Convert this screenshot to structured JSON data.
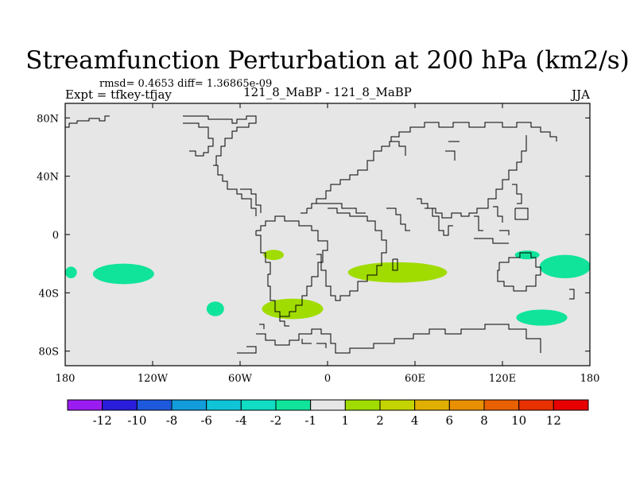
{
  "title": "Streamfunction Perturbation at 200 hPa (km2/s)",
  "stats": "rmsd= 0.4653 diff= 1.36865e-09",
  "experiment": "Expt = tfkey-tfjay",
  "center_label": "121_8_MaBP - 121_8_MaBP",
  "season": "JJA",
  "chart_data": {
    "type": "heatmap",
    "projection": "cylindrical-equidistant",
    "xlim": [
      -180,
      180
    ],
    "ylim": [
      -90,
      90
    ],
    "x_ticks": [
      {
        "value": -180,
        "label": "180"
      },
      {
        "value": -120,
        "label": "120W"
      },
      {
        "value": -60,
        "label": "60W"
      },
      {
        "value": 0,
        "label": "0"
      },
      {
        "value": 60,
        "label": "60E"
      },
      {
        "value": 120,
        "label": "120E"
      },
      {
        "value": 180,
        "label": "180"
      }
    ],
    "y_ticks": [
      {
        "value": 80,
        "label": "80N"
      },
      {
        "value": 40,
        "label": "40N"
      },
      {
        "value": 0,
        "label": "0"
      },
      {
        "value": -40,
        "label": "40S"
      },
      {
        "value": -80,
        "label": "80S"
      }
    ],
    "background_color": "#e6e6e6",
    "colorbar": {
      "colors": [
        "#9b1cf0",
        "#2a1ddb",
        "#1d59dc",
        "#129cdc",
        "#10c4d8",
        "#10ddc4",
        "#10e49a",
        "#e6e6e6",
        "#a0dc00",
        "#c4d400",
        "#e0b000",
        "#e89000",
        "#e86000",
        "#e83000",
        "#e80000"
      ],
      "labels": [
        "-12",
        "-10",
        "-8",
        "-6",
        "-4",
        "-2",
        "-1",
        "1",
        "2",
        "4",
        "6",
        "8",
        "10",
        "12"
      ]
    },
    "anomalies": [
      {
        "value_range": "-2 to -1",
        "color": "#10e49a",
        "lon": -140,
        "lat": -27,
        "lon_width": 42,
        "lat_height": 14
      },
      {
        "value_range": "-2 to -1",
        "color": "#10e49a",
        "lon": -176,
        "lat": -26,
        "lon_width": 8,
        "lat_height": 8
      },
      {
        "value_range": "-2 to -1",
        "color": "#10e49a",
        "lon": -77,
        "lat": -51,
        "lon_width": 12,
        "lat_height": 10
      },
      {
        "value_range": "-2 to -1",
        "color": "#10e49a",
        "lon": 137,
        "lat": -14,
        "lon_width": 17,
        "lat_height": 6
      },
      {
        "value_range": "-2 to -1",
        "color": "#10e49a",
        "lon": 163,
        "lat": -22,
        "lon_width": 35,
        "lat_height": 16
      },
      {
        "value_range": "-2 to -1",
        "color": "#10e49a",
        "lon": 147,
        "lat": -57,
        "lon_width": 35,
        "lat_height": 11
      },
      {
        "value_range": "1 to 2",
        "color": "#a0dc00",
        "lon": 48,
        "lat": -26,
        "lon_width": 68,
        "lat_height": 14
      },
      {
        "value_range": "1 to 2",
        "color": "#a0dc00",
        "lon": -37,
        "lat": -14,
        "lon_width": 14,
        "lat_height": 7
      },
      {
        "value_range": "1 to 2",
        "color": "#a0dc00",
        "lon": -24,
        "lat": -51,
        "lon_width": 42,
        "lat_height": 14
      }
    ]
  }
}
